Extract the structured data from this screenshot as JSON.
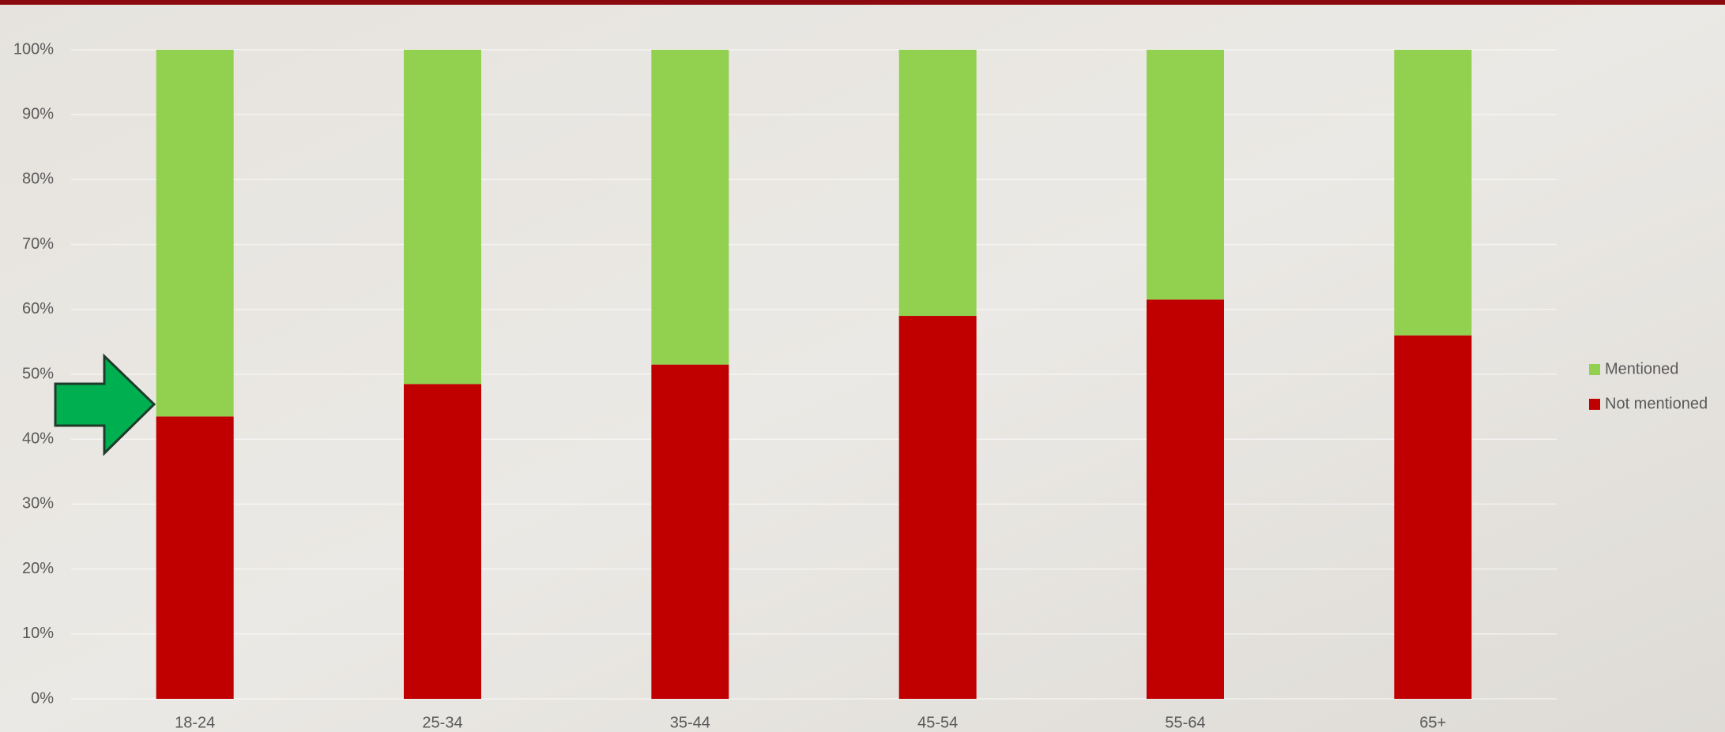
{
  "chart_data": {
    "type": "stacked_bar",
    "categories": [
      "18-24",
      "25-34",
      "35-44",
      "45-54",
      "55-64",
      "65+"
    ],
    "series": [
      {
        "name": "Not mentioned",
        "color": "#c00000",
        "values": [
          43.5,
          48.5,
          51.5,
          59,
          61.5,
          56
        ]
      },
      {
        "name": "Mentioned",
        "color": "#92d050",
        "values": [
          56.5,
          51.5,
          48.5,
          41,
          38.5,
          44
        ]
      }
    ],
    "ylim": [
      0,
      100
    ],
    "yticks": [
      {
        "value": 0,
        "label": "0%"
      },
      {
        "value": 10,
        "label": "10%"
      },
      {
        "value": 20,
        "label": "20%"
      },
      {
        "value": 30,
        "label": "30%"
      },
      {
        "value": 40,
        "label": "40%"
      },
      {
        "value": 50,
        "label": "50%"
      },
      {
        "value": 60,
        "label": "60%"
      },
      {
        "value": 70,
        "label": "70%"
      },
      {
        "value": 80,
        "label": "80%"
      },
      {
        "value": 90,
        "label": "90%"
      },
      {
        "value": 100,
        "label": "100%"
      }
    ],
    "grid": true,
    "legend": "right"
  }
}
